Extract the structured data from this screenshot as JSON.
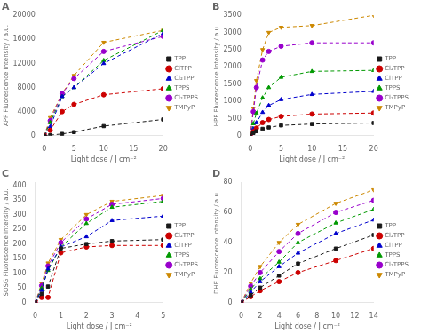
{
  "chart_data": [
    {
      "type": "scatter",
      "title": "A",
      "xlabel": "Light dose / J cm⁻²",
      "ylabel": "APF Fluorescence Intensity / a.u.",
      "xlim": [
        0,
        20
      ],
      "ylim": [
        0,
        20000
      ],
      "xticks": [
        0,
        5,
        10,
        15,
        20
      ],
      "yticks": [
        0,
        4000,
        8000,
        12000,
        16000,
        20000
      ],
      "grid": false,
      "legend": "right",
      "x": [
        0,
        1,
        3,
        5,
        10,
        20
      ],
      "series": [
        {
          "name": "TPP",
          "color": "#1a1a1a",
          "marker": "square",
          "line_style": "dashed",
          "values": [
            0,
            100,
            300,
            600,
            1600,
            2700
          ]
        },
        {
          "name": "ClTPP",
          "color": "#cc0000",
          "marker": "circle",
          "line_style": "dashed",
          "values": [
            0,
            900,
            4000,
            5200,
            6800,
            7800
          ]
        },
        {
          "name": "Cl₂TPP",
          "color": "#0000cc",
          "marker": "triangle-up",
          "line_style": "dashed",
          "values": [
            0,
            1500,
            6500,
            8000,
            12000,
            17000
          ]
        },
        {
          "name": "TPPS",
          "color": "#009900",
          "marker": "triangle-up",
          "line_style": "dashed",
          "values": [
            0,
            2200,
            6500,
            8000,
            12500,
            17500
          ]
        },
        {
          "name": "Cl₂TPPS",
          "color": "#9900cc",
          "marker": "circle",
          "line_style": "dashed",
          "values": [
            0,
            2500,
            7000,
            9500,
            14000,
            16500
          ]
        },
        {
          "name": "TMPyP",
          "color": "#cc8800",
          "marker": "triangle-down",
          "line_style": "dashed",
          "values": [
            0,
            3000,
            7000,
            10000,
            15500,
            17500
          ]
        }
      ]
    },
    {
      "type": "scatter",
      "title": "B",
      "xlabel": "Light dose / J cm⁻²",
      "ylabel": "HPF Fluorescence Intensity / a.u.",
      "xlim": [
        0,
        20
      ],
      "ylim": [
        0,
        3500
      ],
      "xticks": [
        0,
        5,
        10,
        15,
        20
      ],
      "yticks": [
        0,
        500,
        1000,
        1500,
        2000,
        2500,
        3000,
        3500
      ],
      "grid": false,
      "legend": "right",
      "x": [
        0,
        0.5,
        1,
        2,
        3,
        5,
        10,
        20
      ],
      "series": [
        {
          "name": "TPP",
          "color": "#1a1a1a",
          "marker": "square",
          "line_style": "dashed",
          "values": [
            0,
            80,
            130,
            200,
            240,
            300,
            340,
            370
          ]
        },
        {
          "name": "Cl₂TPP",
          "color": "#cc0000",
          "marker": "circle",
          "line_style": "dashed",
          "values": [
            0,
            120,
            220,
            380,
            470,
            560,
            630,
            660
          ]
        },
        {
          "name": "ClTPP",
          "color": "#0000cc",
          "marker": "triangle-up",
          "line_style": "dashed",
          "values": [
            0,
            200,
            380,
            680,
            880,
            1050,
            1200,
            1290
          ]
        },
        {
          "name": "TPPS",
          "color": "#009900",
          "marker": "triangle-up",
          "line_style": "dashed",
          "values": [
            0,
            350,
            650,
            1100,
            1400,
            1700,
            1870,
            1900
          ]
        },
        {
          "name": "Cl₂TPPS",
          "color": "#9900cc",
          "marker": "circle",
          "line_style": "dashed",
          "values": [
            0,
            700,
            1400,
            2200,
            2450,
            2600,
            2700,
            2700
          ]
        },
        {
          "name": "TMPyP",
          "color": "#cc8800",
          "marker": "triangle-down",
          "line_style": "dashed",
          "values": [
            0,
            800,
            1600,
            2500,
            3000,
            3150,
            3200,
            3500
          ]
        }
      ]
    },
    {
      "type": "scatter",
      "title": "C",
      "xlabel": "Light dose / J cm⁻²",
      "ylabel": "SOSG Fluorescence Intensity / a.u.",
      "xlim": [
        0,
        5
      ],
      "ylim": [
        0,
        410
      ],
      "xticks": [
        0,
        1,
        2,
        3,
        4,
        5
      ],
      "yticks": [
        0,
        50,
        100,
        150,
        200,
        250,
        300,
        350,
        400
      ],
      "grid": false,
      "legend": "right",
      "x": [
        0,
        0.25,
        0.5,
        1,
        2,
        3,
        5
      ],
      "series": [
        {
          "name": "TPP",
          "color": "#1a1a1a",
          "marker": "square",
          "line_style": "dashed",
          "values": [
            0,
            30,
            55,
            185,
            200,
            210,
            215
          ]
        },
        {
          "name": "Cl₂TPP",
          "color": "#cc0000",
          "marker": "circle",
          "line_style": "dashed",
          "values": [
            0,
            18,
            18,
            170,
            190,
            195,
            195
          ]
        },
        {
          "name": "ClTPP",
          "color": "#0000cc",
          "marker": "triangle-up",
          "line_style": "dashed",
          "values": [
            0,
            42,
            115,
            190,
            225,
            280,
            295
          ]
        },
        {
          "name": "TPPS",
          "color": "#009900",
          "marker": "triangle-up",
          "line_style": "dashed",
          "values": [
            0,
            50,
            110,
            190,
            270,
            325,
            345
          ]
        },
        {
          "name": "Cl₂TPPS",
          "color": "#9900cc",
          "marker": "circle",
          "line_style": "dashed",
          "values": [
            0,
            58,
            125,
            205,
            285,
            335,
            355
          ]
        },
        {
          "name": "TMPyP",
          "color": "#cc8800",
          "marker": "triangle-down",
          "line_style": "dashed",
          "values": [
            0,
            65,
            135,
            215,
            300,
            345,
            365
          ]
        }
      ]
    },
    {
      "type": "scatter",
      "title": "D",
      "xlabel": "Light dose / J cm⁻²",
      "ylabel": "DHE Fluorescence Intensity / a.u.",
      "xlim": [
        0,
        14
      ],
      "ylim": [
        0,
        80
      ],
      "xticks": [
        0,
        2,
        4,
        6,
        8,
        10,
        12,
        14
      ],
      "yticks": [
        0,
        20,
        40,
        60,
        80
      ],
      "grid": false,
      "legend": "right",
      "x": [
        0,
        1,
        2,
        4,
        6,
        10,
        14
      ],
      "series": [
        {
          "name": "TPP",
          "color": "#1a1a1a",
          "marker": "square",
          "line_style": "dashed",
          "values": [
            0,
            5,
            10,
            18,
            26,
            36,
            45
          ]
        },
        {
          "name": "Cl₂TPP",
          "color": "#cc0000",
          "marker": "circle",
          "line_style": "dashed",
          "values": [
            0,
            4,
            8,
            14,
            20,
            28,
            36
          ]
        },
        {
          "name": "ClTPP",
          "color": "#0000cc",
          "marker": "triangle-up",
          "line_style": "dashed",
          "values": [
            0,
            7,
            14,
            24,
            33,
            46,
            55
          ]
        },
        {
          "name": "TPPS",
          "color": "#009900",
          "marker": "triangle-up",
          "line_style": "dashed",
          "values": [
            0,
            9,
            16,
            27,
            40,
            53,
            62
          ]
        },
        {
          "name": "Cl₂TPPS",
          "color": "#9900cc",
          "marker": "circle",
          "line_style": "dashed",
          "values": [
            0,
            11,
            20,
            34,
            46,
            60,
            68
          ]
        },
        {
          "name": "TMPyP",
          "color": "#cc8800",
          "marker": "triangle-down",
          "line_style": "dashed",
          "values": [
            0,
            13,
            24,
            40,
            52,
            66,
            75
          ]
        }
      ]
    }
  ]
}
